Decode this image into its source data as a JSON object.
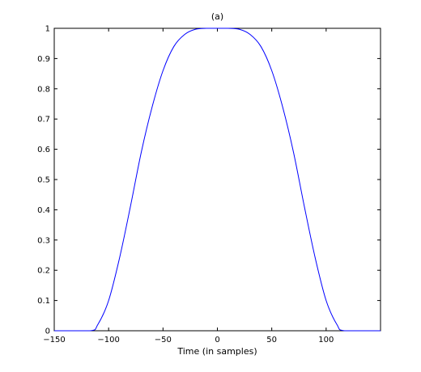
{
  "chart_data": {
    "type": "line",
    "title": "(a)",
    "xlabel": "Time (in samples)",
    "ylabel": "",
    "xlim": [
      -150,
      150
    ],
    "ylim": [
      0,
      1
    ],
    "xticks": [
      -150,
      -100,
      -50,
      0,
      50,
      100
    ],
    "xtick_labels": [
      "−150",
      "−100",
      "−50",
      "0",
      "50",
      "100"
    ],
    "yticks": [
      0,
      0.1,
      0.2,
      0.3,
      0.4,
      0.5,
      0.6,
      0.7,
      0.8,
      0.9,
      1
    ],
    "ytick_labels": [
      "0",
      "0.1",
      "0.2",
      "0.3",
      "0.4",
      "0.5",
      "0.6",
      "0.7",
      "0.8",
      "0.9",
      "1"
    ],
    "grid": false,
    "series": [
      {
        "color": "#0000ff",
        "x": [
          -150,
          -117,
          -110,
          -100,
          -90,
          -80,
          -70,
          -60,
          -50,
          -40,
          -30,
          -20,
          -10,
          0,
          10,
          20,
          30,
          40,
          50,
          60,
          70,
          80,
          90,
          100,
          110,
          117,
          150
        ],
        "y": [
          0,
          0,
          0.02,
          0.1,
          0.24,
          0.41,
          0.59,
          0.74,
          0.86,
          0.94,
          0.98,
          0.997,
          1.0,
          1.0,
          1.0,
          0.997,
          0.98,
          0.94,
          0.86,
          0.74,
          0.59,
          0.41,
          0.24,
          0.1,
          0.02,
          0,
          0
        ]
      }
    ]
  }
}
